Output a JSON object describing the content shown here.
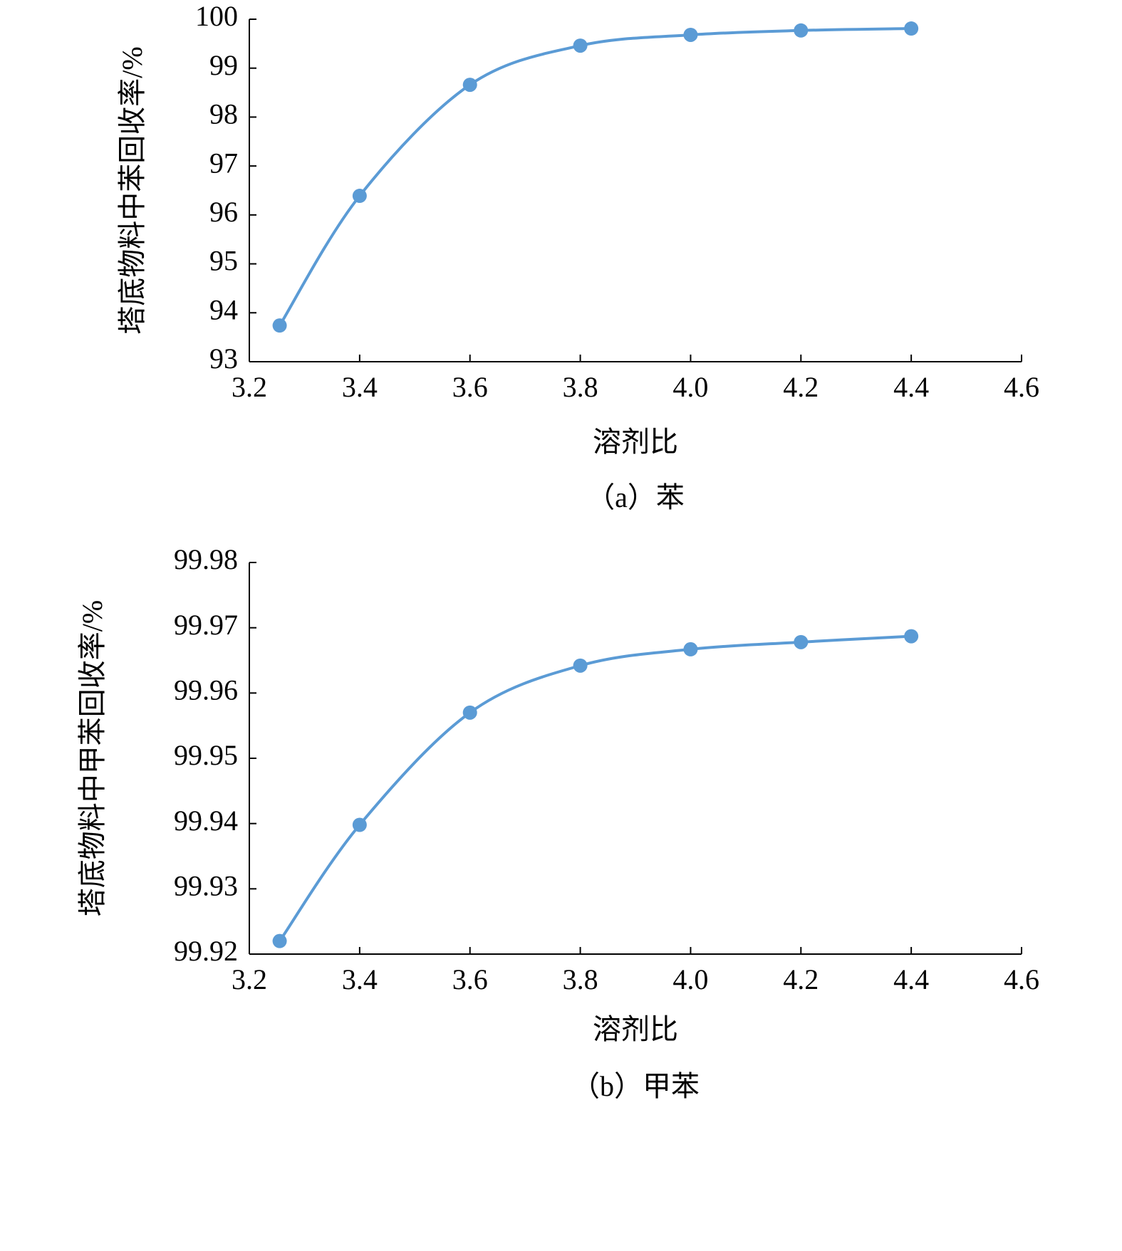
{
  "chart_data": [
    {
      "type": "line",
      "caption": "（a）苯",
      "x_label": "溶剂比",
      "y_label": "塔底物料中苯回收率/%",
      "x": [
        3.255,
        3.4,
        3.6,
        3.8,
        4.0,
        4.2,
        4.4
      ],
      "series": [
        {
          "color": "#5b9bd5",
          "values": [
            93.74,
            96.39,
            98.66,
            99.46,
            99.68,
            99.77,
            99.81
          ]
        }
      ],
      "xlim": [
        3.2,
        4.6
      ],
      "xticks": [
        3.2,
        3.4,
        3.6,
        3.8,
        {
          "value": 4,
          "label": "4.0"
        },
        4.2,
        4.4,
        4.6
      ],
      "ylim": [
        93,
        100
      ],
      "yticks": [
        93,
        94,
        95,
        96,
        97,
        98,
        99,
        100
      ]
    },
    {
      "type": "line",
      "caption": "（b）甲苯",
      "x_label": "溶剂比",
      "y_label": "塔底物料中甲苯回收率/%",
      "x": [
        3.255,
        3.4,
        3.6,
        3.8,
        4.0,
        4.2,
        4.4
      ],
      "series": [
        {
          "color": "#5b9bd5",
          "values": [
            99.922,
            99.9398,
            99.957,
            99.9642,
            99.9667,
            99.9678,
            99.9687
          ]
        }
      ],
      "xlim": [
        3.2,
        4.6
      ],
      "xticks": [
        3.2,
        3.4,
        3.6,
        3.8,
        {
          "value": 4,
          "label": "4.0"
        },
        4.2,
        4.4,
        4.6
      ],
      "ylim": [
        99.92,
        99.98
      ],
      "yticks": [
        99.92,
        99.93,
        99.94,
        99.95,
        99.96,
        99.97,
        99.98
      ]
    }
  ]
}
